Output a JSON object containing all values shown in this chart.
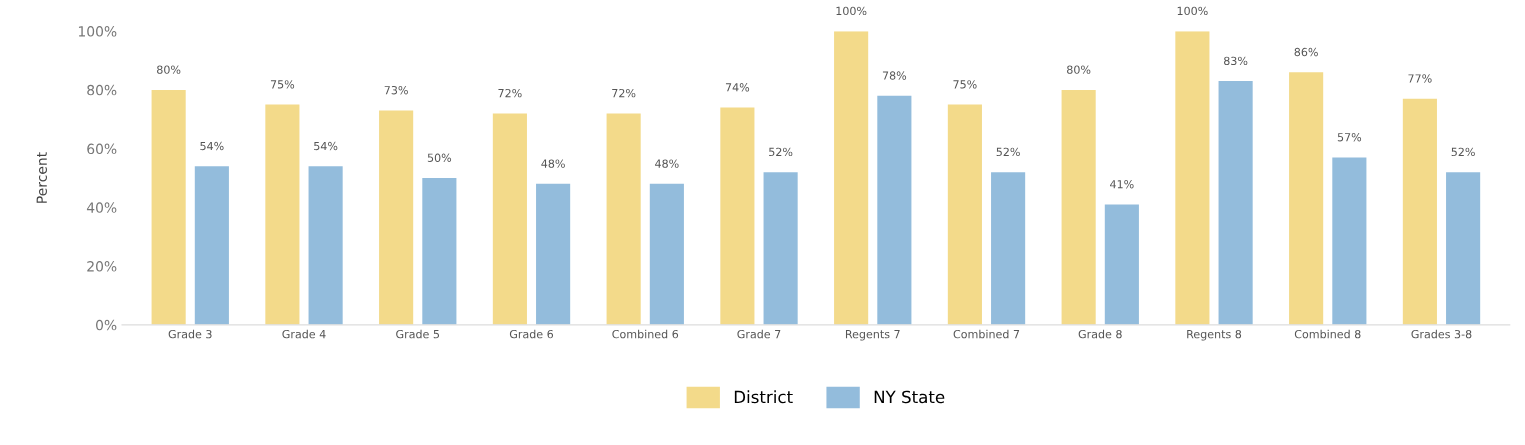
{
  "chart_data": {
    "type": "bar",
    "ylabel": "Percent",
    "categories": [
      "Grade 3",
      "Grade 4",
      "Grade 5",
      "Grade 6",
      "Combined 6",
      "Grade 7",
      "Regents 7",
      "Combined 7",
      "Grade 8",
      "Regents 8",
      "Combined 8",
      "Grades 3-8"
    ],
    "series": [
      {
        "name": "District",
        "color": "#f3da8a",
        "values": [
          80,
          75,
          73,
          72,
          72,
          74,
          100,
          75,
          80,
          100,
          86,
          77
        ],
        "value_labels": [
          "80%",
          "75%",
          "73%",
          "72%",
          "72%",
          "74%",
          "100%",
          "75%",
          "80%",
          "100%",
          "86%",
          "77%"
        ]
      },
      {
        "name": "NY State",
        "color": "#93bcdc",
        "values": [
          54,
          54,
          50,
          48,
          48,
          52,
          78,
          52,
          41,
          83,
          57,
          52
        ],
        "value_labels": [
          "54%",
          "54%",
          "50%",
          "48%",
          "48%",
          "52%",
          "78%",
          "52%",
          "41%",
          "83%",
          "57%",
          "52%"
        ]
      }
    ],
    "ylim": [
      0,
      100
    ],
    "yticks": [
      {
        "value": 0,
        "label": "0%"
      },
      {
        "value": 20,
        "label": "20%"
      },
      {
        "value": 40,
        "label": "40%"
      },
      {
        "value": 60,
        "label": "60%"
      },
      {
        "value": 80,
        "label": "80%"
      },
      {
        "value": 100,
        "label": "100%"
      }
    ],
    "grid": false,
    "legend": "bottom"
  }
}
